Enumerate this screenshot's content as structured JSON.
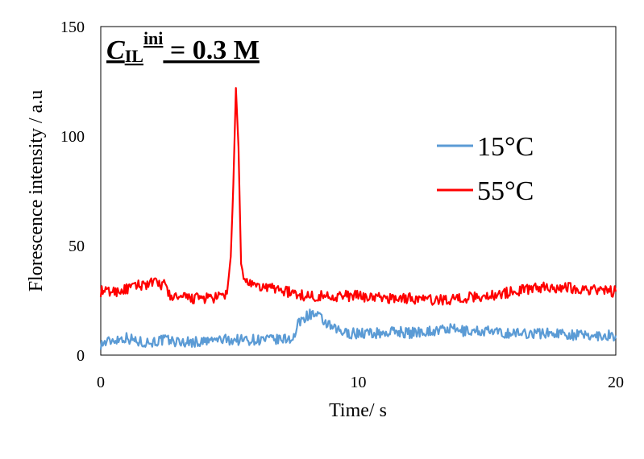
{
  "chart_data": {
    "type": "line",
    "xlabel": "Time/ s",
    "ylabel": "Florescence  intensity / a.u",
    "xlim": [
      0,
      20
    ],
    "ylim": [
      0,
      150
    ],
    "xticks": [
      "0",
      "10",
      "20"
    ],
    "yticks": [
      "0",
      "50",
      "100",
      "150"
    ],
    "xtick_values": [
      0,
      10,
      20
    ],
    "ytick_values": [
      0,
      50,
      100,
      150
    ],
    "grid": false,
    "legend_position": "right",
    "annotation": {
      "main_c": "C",
      "main_il": "IL",
      "sup": "ini",
      "rest": " = 0.3 M"
    },
    "series": [
      {
        "name": "15°C",
        "color": "#5B9BD5",
        "x": [
          0,
          0.5,
          1,
          1.5,
          2,
          2.5,
          3,
          3.5,
          4,
          4.5,
          5,
          5.5,
          6,
          6.5,
          7,
          7.5,
          7.7,
          8,
          8.2,
          8.5,
          9,
          9.5,
          10,
          10.5,
          11,
          11.5,
          12,
          12.5,
          13,
          13.5,
          14,
          14.5,
          15,
          15.5,
          16,
          16.5,
          17,
          17.5,
          18,
          18.5,
          19,
          19.5,
          20
        ],
        "y": [
          5,
          7,
          8,
          6,
          6,
          7,
          6,
          6,
          6,
          7,
          7,
          7,
          7,
          7,
          7,
          8,
          15,
          18,
          19,
          17,
          12,
          10,
          10,
          10,
          10,
          11,
          10,
          11,
          11,
          12,
          11,
          11,
          11,
          10,
          10,
          10,
          10,
          10,
          10,
          9,
          9,
          9,
          9
        ]
      },
      {
        "name": "55°C",
        "color": "#FF0000",
        "x": [
          0,
          0.5,
          1,
          1.5,
          2,
          2.5,
          2.7,
          3,
          3.5,
          4,
          4.5,
          4.9,
          5.05,
          5.15,
          5.25,
          5.35,
          5.45,
          5.55,
          5.8,
          6,
          6.5,
          7,
          7.5,
          8,
          9,
          10,
          11,
          12,
          13,
          14,
          15,
          16,
          17,
          18,
          19,
          20
        ],
        "y": [
          29,
          29,
          30,
          32,
          33,
          32,
          27,
          26,
          26,
          26,
          26,
          28,
          45,
          78,
          122,
          95,
          40,
          36,
          32,
          31,
          31,
          30,
          28,
          27,
          27,
          27,
          26,
          26,
          25,
          26,
          27,
          29,
          31,
          31,
          30,
          29
        ]
      }
    ]
  }
}
